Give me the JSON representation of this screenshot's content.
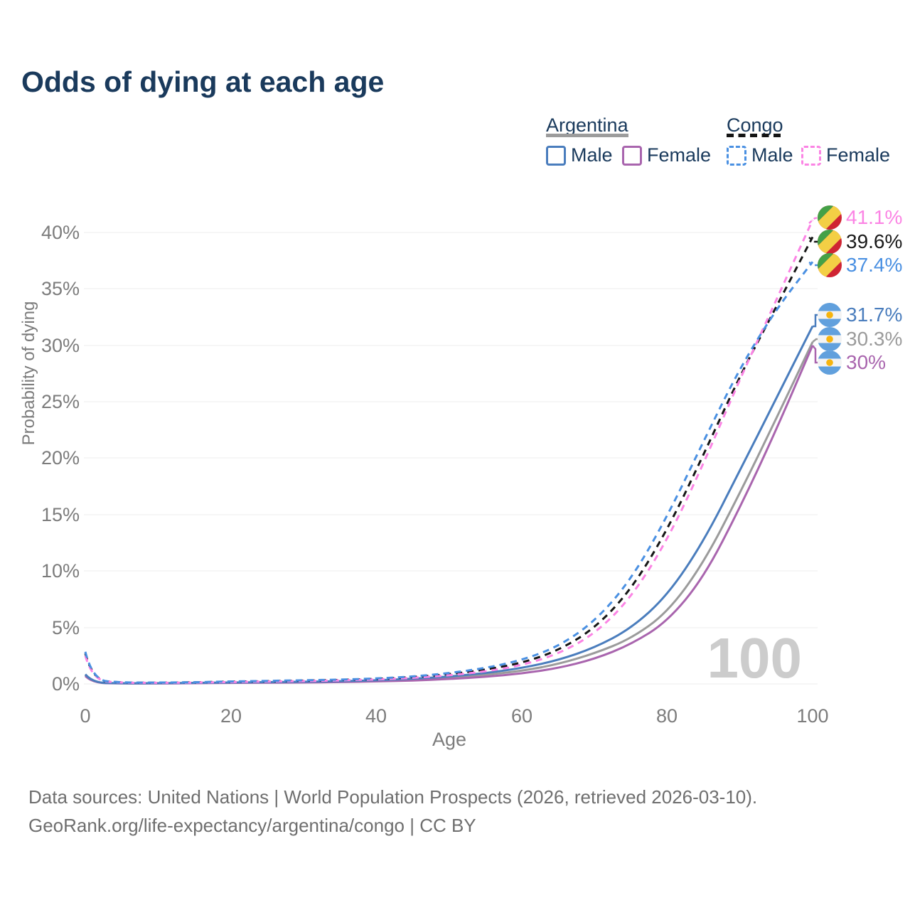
{
  "title": "Odds of dying at each age",
  "legend": {
    "argentina": {
      "label": "Argentina",
      "male_label": "Male",
      "female_label": "Female"
    },
    "congo": {
      "label": "Congo",
      "male_label": "Male",
      "female_label": "Female"
    }
  },
  "colors": {
    "title": "#1a3a5c",
    "argentina_male": "#4a7dbd",
    "argentina_female": "#a965ae",
    "argentina_all": "#9b9b9b",
    "congo_male": "#4a90e2",
    "congo_female": "#fb84e4",
    "congo_all": "#161616",
    "axis_text": "#7c7c7c",
    "gridline": "#ececec",
    "watermark": "#cccccc"
  },
  "chart_data": {
    "type": "line",
    "title": "Odds of dying at each age",
    "xlabel": "Age",
    "ylabel": "Probability of dying",
    "xlim": [
      0,
      100
    ],
    "ylim_percent": [
      0,
      42
    ],
    "grid": "horizontal",
    "legend_position": "top-right",
    "watermark": "100",
    "xtick_labels": [
      "0",
      "20",
      "40",
      "60",
      "80",
      "100"
    ],
    "ytick_labels": [
      "40%",
      "35%",
      "30%",
      "25%",
      "20%",
      "15%",
      "10%",
      "5%",
      "0%"
    ],
    "ages": [
      0,
      1,
      5,
      10,
      15,
      20,
      25,
      30,
      35,
      40,
      45,
      50,
      55,
      60,
      65,
      70,
      75,
      80,
      85,
      90,
      95,
      100
    ],
    "series": [
      {
        "id": "argentina-all",
        "name": "Argentina — Both sexes",
        "country": "Argentina",
        "sex": "all",
        "color": "#9b9b9b",
        "dashed": false,
        "end_label": "30.3%",
        "end_value_percent": 30.3,
        "flag": "argentina",
        "values": [
          0.78,
          0.09,
          0.045,
          0.05,
          0.08,
          0.11,
          0.13,
          0.16,
          0.2,
          0.27,
          0.38,
          0.55,
          0.8,
          1.15,
          1.75,
          2.7,
          4.0,
          6.3,
          10.7,
          16.9,
          23.5,
          30.3
        ]
      },
      {
        "id": "argentina-female",
        "name": "Argentina — Female",
        "country": "Argentina",
        "sex": "female",
        "color": "#a965ae",
        "dashed": false,
        "end_label": "30%",
        "end_value_percent": 30.0,
        "flag": "argentina",
        "values": [
          0.7,
          0.08,
          0.04,
          0.04,
          0.06,
          0.09,
          0.11,
          0.13,
          0.16,
          0.22,
          0.3,
          0.43,
          0.63,
          0.92,
          1.4,
          2.2,
          3.5,
          5.5,
          9.4,
          15.6,
          22.5,
          30.0
        ]
      },
      {
        "id": "argentina-male",
        "name": "Argentina — Male",
        "country": "Argentina",
        "sex": "male",
        "color": "#4a7dbd",
        "dashed": false,
        "end_label": "31.7%",
        "end_value_percent": 31.7,
        "flag": "argentina",
        "values": [
          0.85,
          0.1,
          0.05,
          0.06,
          0.09,
          0.13,
          0.16,
          0.19,
          0.24,
          0.32,
          0.45,
          0.65,
          0.95,
          1.4,
          2.1,
          3.2,
          4.9,
          7.8,
          12.6,
          18.9,
          25.3,
          31.7
        ]
      },
      {
        "id": "congo-all",
        "name": "Congo — Both sexes",
        "country": "Congo",
        "sex": "all",
        "color": "#161616",
        "dashed": true,
        "end_label": "39.6%",
        "end_value_percent": 39.6,
        "flag": "congo",
        "values": [
          2.7,
          0.33,
          0.11,
          0.11,
          0.14,
          0.2,
          0.24,
          0.29,
          0.35,
          0.44,
          0.6,
          0.85,
          1.25,
          1.85,
          2.95,
          4.9,
          8.3,
          13.6,
          20.3,
          27.3,
          33.4,
          39.6
        ]
      },
      {
        "id": "congo-female",
        "name": "Congo — Female",
        "country": "Congo",
        "sex": "female",
        "color": "#fb84e4",
        "dashed": true,
        "end_label": "41.1%",
        "end_value_percent": 41.1,
        "flag": "congo",
        "values": [
          2.5,
          0.3,
          0.1,
          0.1,
          0.12,
          0.17,
          0.21,
          0.25,
          0.31,
          0.39,
          0.53,
          0.75,
          1.1,
          1.65,
          2.65,
          4.4,
          7.6,
          12.7,
          19.5,
          27.0,
          34.0,
          41.1
        ]
      },
      {
        "id": "congo-male",
        "name": "Congo — Male",
        "country": "Congo",
        "sex": "male",
        "color": "#4a90e2",
        "dashed": true,
        "end_label": "37.4%",
        "end_value_percent": 37.4,
        "flag": "congo",
        "values": [
          2.85,
          0.35,
          0.12,
          0.12,
          0.15,
          0.22,
          0.27,
          0.32,
          0.38,
          0.48,
          0.65,
          0.95,
          1.4,
          2.1,
          3.3,
          5.5,
          9.2,
          14.8,
          21.5,
          28.0,
          33.2,
          37.4
        ]
      }
    ]
  },
  "footer": {
    "line1": "Data sources: United Nations | World Population Prospects (2026, retrieved 2026-03-10).",
    "line2": "GeoRank.org/life-expectancy/argentina/congo | CC BY"
  }
}
